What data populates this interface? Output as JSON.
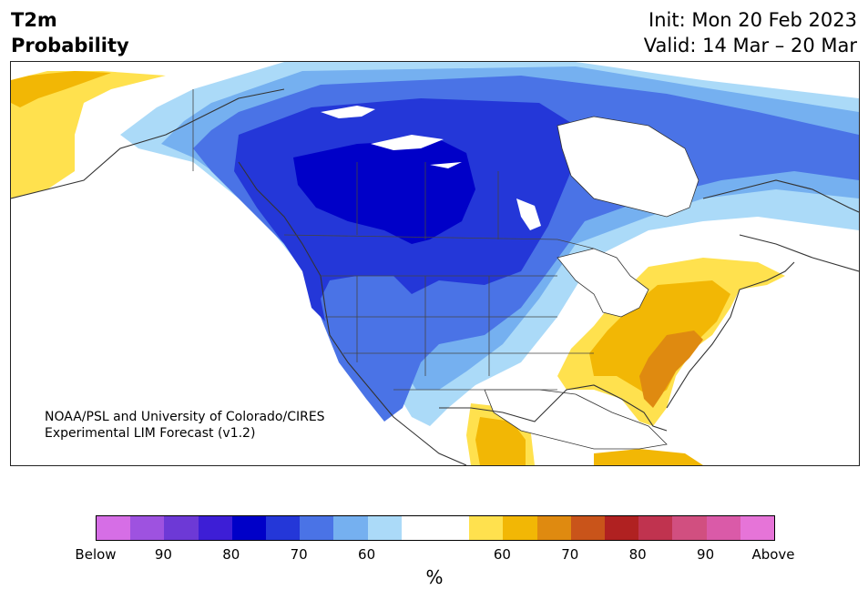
{
  "header": {
    "title_line1": "T2m",
    "title_line2": "Probability",
    "init": "Init: Mon 20 Feb 2023",
    "valid": "Valid: 14 Mar – 20 Mar"
  },
  "credit": {
    "line1": "NOAA/PSL and University of Colorado/CIRES",
    "line2": "Experimental LIM Forecast (v1.2)"
  },
  "colorbar": {
    "unit": "%",
    "colors": [
      "#d66ee6",
      "#9e52e0",
      "#6d39d6",
      "#3d1ed6",
      "#0000c8",
      "#2437d8",
      "#4a73e6",
      "#75b0f0",
      "#abdaf8",
      "#ffffff",
      "#ffffff",
      "#ffe14e",
      "#f2b705",
      "#df8a10",
      "#c9541a",
      "#b02121",
      "#c0334f",
      "#d14f80",
      "#da5aa8",
      "#e674d8"
    ],
    "tick_labels": [
      "Below",
      "90",
      "80",
      "70",
      "60",
      "60",
      "70",
      "80",
      "90",
      "Above"
    ]
  },
  "colors": {
    "below_60": "#abdaf8",
    "below_70": "#75b0f0",
    "below_80": "#4a73e6",
    "below_90": "#2437d8",
    "below_max": "#0000c8",
    "above_60": "#ffe14e",
    "above_70": "#f2b705",
    "above_80": "#df8a10",
    "neutral": "#ffffff"
  }
}
